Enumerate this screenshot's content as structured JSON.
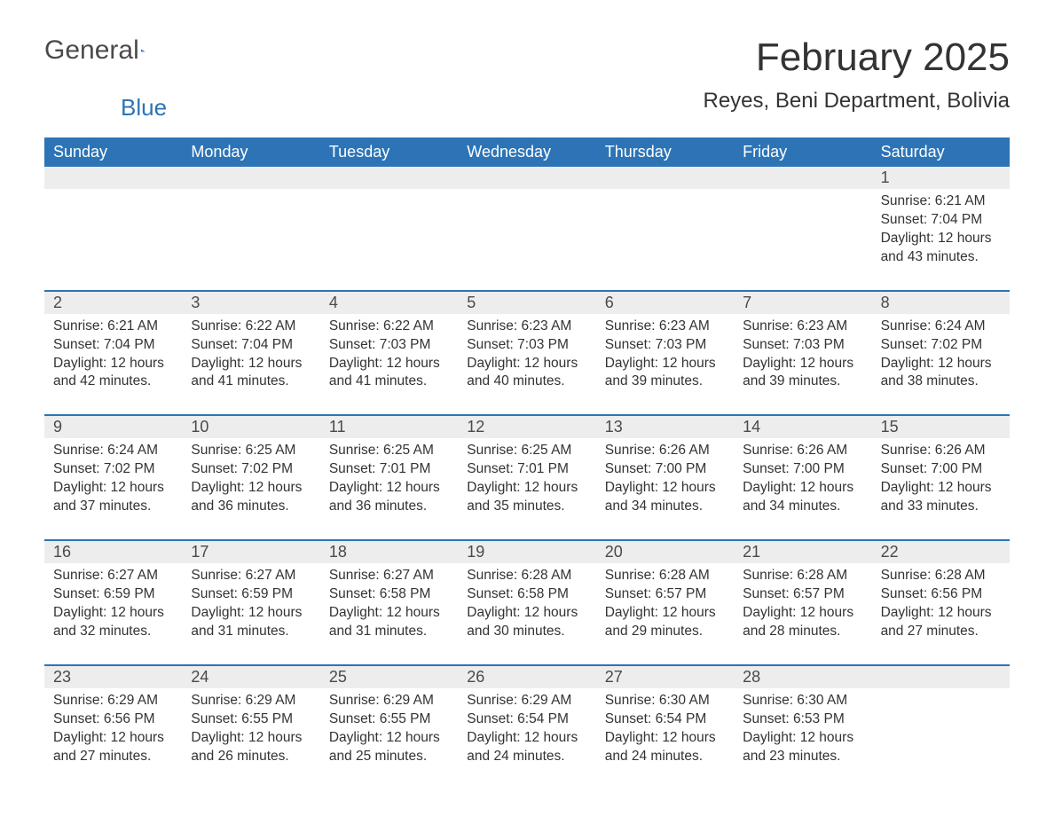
{
  "logo": {
    "text1": "General",
    "text2": "Blue"
  },
  "title": "February 2025",
  "location": "Reyes, Beni Department, Bolivia",
  "colors": {
    "header_bg": "#2d74b6",
    "header_text": "#ffffff",
    "daynum_bg": "#ededed",
    "text": "#333333",
    "rule": "#2d74b6"
  },
  "day_headers": [
    "Sunday",
    "Monday",
    "Tuesday",
    "Wednesday",
    "Thursday",
    "Friday",
    "Saturday"
  ],
  "weeks": [
    [
      null,
      null,
      null,
      null,
      null,
      null,
      {
        "n": "1",
        "sunrise": "Sunrise: 6:21 AM",
        "sunset": "Sunset: 7:04 PM",
        "day1": "Daylight: 12 hours",
        "day2": "and 43 minutes."
      }
    ],
    [
      {
        "n": "2",
        "sunrise": "Sunrise: 6:21 AM",
        "sunset": "Sunset: 7:04 PM",
        "day1": "Daylight: 12 hours",
        "day2": "and 42 minutes."
      },
      {
        "n": "3",
        "sunrise": "Sunrise: 6:22 AM",
        "sunset": "Sunset: 7:04 PM",
        "day1": "Daylight: 12 hours",
        "day2": "and 41 minutes."
      },
      {
        "n": "4",
        "sunrise": "Sunrise: 6:22 AM",
        "sunset": "Sunset: 7:03 PM",
        "day1": "Daylight: 12 hours",
        "day2": "and 41 minutes."
      },
      {
        "n": "5",
        "sunrise": "Sunrise: 6:23 AM",
        "sunset": "Sunset: 7:03 PM",
        "day1": "Daylight: 12 hours",
        "day2": "and 40 minutes."
      },
      {
        "n": "6",
        "sunrise": "Sunrise: 6:23 AM",
        "sunset": "Sunset: 7:03 PM",
        "day1": "Daylight: 12 hours",
        "day2": "and 39 minutes."
      },
      {
        "n": "7",
        "sunrise": "Sunrise: 6:23 AM",
        "sunset": "Sunset: 7:03 PM",
        "day1": "Daylight: 12 hours",
        "day2": "and 39 minutes."
      },
      {
        "n": "8",
        "sunrise": "Sunrise: 6:24 AM",
        "sunset": "Sunset: 7:02 PM",
        "day1": "Daylight: 12 hours",
        "day2": "and 38 minutes."
      }
    ],
    [
      {
        "n": "9",
        "sunrise": "Sunrise: 6:24 AM",
        "sunset": "Sunset: 7:02 PM",
        "day1": "Daylight: 12 hours",
        "day2": "and 37 minutes."
      },
      {
        "n": "10",
        "sunrise": "Sunrise: 6:25 AM",
        "sunset": "Sunset: 7:02 PM",
        "day1": "Daylight: 12 hours",
        "day2": "and 36 minutes."
      },
      {
        "n": "11",
        "sunrise": "Sunrise: 6:25 AM",
        "sunset": "Sunset: 7:01 PM",
        "day1": "Daylight: 12 hours",
        "day2": "and 36 minutes."
      },
      {
        "n": "12",
        "sunrise": "Sunrise: 6:25 AM",
        "sunset": "Sunset: 7:01 PM",
        "day1": "Daylight: 12 hours",
        "day2": "and 35 minutes."
      },
      {
        "n": "13",
        "sunrise": "Sunrise: 6:26 AM",
        "sunset": "Sunset: 7:00 PM",
        "day1": "Daylight: 12 hours",
        "day2": "and 34 minutes."
      },
      {
        "n": "14",
        "sunrise": "Sunrise: 6:26 AM",
        "sunset": "Sunset: 7:00 PM",
        "day1": "Daylight: 12 hours",
        "day2": "and 34 minutes."
      },
      {
        "n": "15",
        "sunrise": "Sunrise: 6:26 AM",
        "sunset": "Sunset: 7:00 PM",
        "day1": "Daylight: 12 hours",
        "day2": "and 33 minutes."
      }
    ],
    [
      {
        "n": "16",
        "sunrise": "Sunrise: 6:27 AM",
        "sunset": "Sunset: 6:59 PM",
        "day1": "Daylight: 12 hours",
        "day2": "and 32 minutes."
      },
      {
        "n": "17",
        "sunrise": "Sunrise: 6:27 AM",
        "sunset": "Sunset: 6:59 PM",
        "day1": "Daylight: 12 hours",
        "day2": "and 31 minutes."
      },
      {
        "n": "18",
        "sunrise": "Sunrise: 6:27 AM",
        "sunset": "Sunset: 6:58 PM",
        "day1": "Daylight: 12 hours",
        "day2": "and 31 minutes."
      },
      {
        "n": "19",
        "sunrise": "Sunrise: 6:28 AM",
        "sunset": "Sunset: 6:58 PM",
        "day1": "Daylight: 12 hours",
        "day2": "and 30 minutes."
      },
      {
        "n": "20",
        "sunrise": "Sunrise: 6:28 AM",
        "sunset": "Sunset: 6:57 PM",
        "day1": "Daylight: 12 hours",
        "day2": "and 29 minutes."
      },
      {
        "n": "21",
        "sunrise": "Sunrise: 6:28 AM",
        "sunset": "Sunset: 6:57 PM",
        "day1": "Daylight: 12 hours",
        "day2": "and 28 minutes."
      },
      {
        "n": "22",
        "sunrise": "Sunrise: 6:28 AM",
        "sunset": "Sunset: 6:56 PM",
        "day1": "Daylight: 12 hours",
        "day2": "and 27 minutes."
      }
    ],
    [
      {
        "n": "23",
        "sunrise": "Sunrise: 6:29 AM",
        "sunset": "Sunset: 6:56 PM",
        "day1": "Daylight: 12 hours",
        "day2": "and 27 minutes."
      },
      {
        "n": "24",
        "sunrise": "Sunrise: 6:29 AM",
        "sunset": "Sunset: 6:55 PM",
        "day1": "Daylight: 12 hours",
        "day2": "and 26 minutes."
      },
      {
        "n": "25",
        "sunrise": "Sunrise: 6:29 AM",
        "sunset": "Sunset: 6:55 PM",
        "day1": "Daylight: 12 hours",
        "day2": "and 25 minutes."
      },
      {
        "n": "26",
        "sunrise": "Sunrise: 6:29 AM",
        "sunset": "Sunset: 6:54 PM",
        "day1": "Daylight: 12 hours",
        "day2": "and 24 minutes."
      },
      {
        "n": "27",
        "sunrise": "Sunrise: 6:30 AM",
        "sunset": "Sunset: 6:54 PM",
        "day1": "Daylight: 12 hours",
        "day2": "and 24 minutes."
      },
      {
        "n": "28",
        "sunrise": "Sunrise: 6:30 AM",
        "sunset": "Sunset: 6:53 PM",
        "day1": "Daylight: 12 hours",
        "day2": "and 23 minutes."
      },
      null
    ]
  ]
}
